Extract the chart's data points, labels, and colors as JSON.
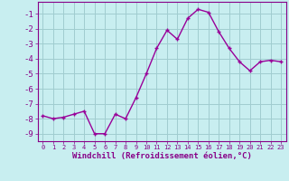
{
  "x": [
    0,
    1,
    2,
    3,
    4,
    5,
    6,
    7,
    8,
    9,
    10,
    11,
    12,
    13,
    14,
    15,
    16,
    17,
    18,
    19,
    20,
    21,
    22,
    23
  ],
  "y": [
    -7.8,
    -8.0,
    -7.9,
    -7.7,
    -7.5,
    -9.0,
    -9.0,
    -7.7,
    -8.0,
    -6.6,
    -5.0,
    -3.3,
    -2.1,
    -2.7,
    -1.3,
    -0.7,
    -0.9,
    -2.2,
    -3.3,
    -4.2,
    -4.8,
    -4.2,
    -4.1,
    -4.2
  ],
  "line_color": "#990099",
  "marker": "+",
  "marker_size": 3,
  "background_color": "#c8eef0",
  "grid_color": "#a0ccd0",
  "xlabel": "Windchill (Refroidissement éolien,°C)",
  "ylabel": "",
  "xlim": [
    -0.5,
    23.5
  ],
  "ylim": [
    -9.5,
    -0.2
  ],
  "yticks": [
    -9,
    -8,
    -7,
    -6,
    -5,
    -4,
    -3,
    -2,
    -1
  ],
  "xtick_labels": [
    "0",
    "1",
    "2",
    "3",
    "4",
    "5",
    "6",
    "7",
    "8",
    "9",
    "10",
    "11",
    "12",
    "13",
    "14",
    "15",
    "16",
    "17",
    "18",
    "19",
    "20",
    "21",
    "22",
    "23"
  ],
  "tick_color": "#880088",
  "label_color": "#880088",
  "spine_color": "#880088",
  "line_width": 1.0,
  "ytick_fontsize": 6.5,
  "xtick_fontsize": 5.0,
  "xlabel_fontsize": 6.5
}
